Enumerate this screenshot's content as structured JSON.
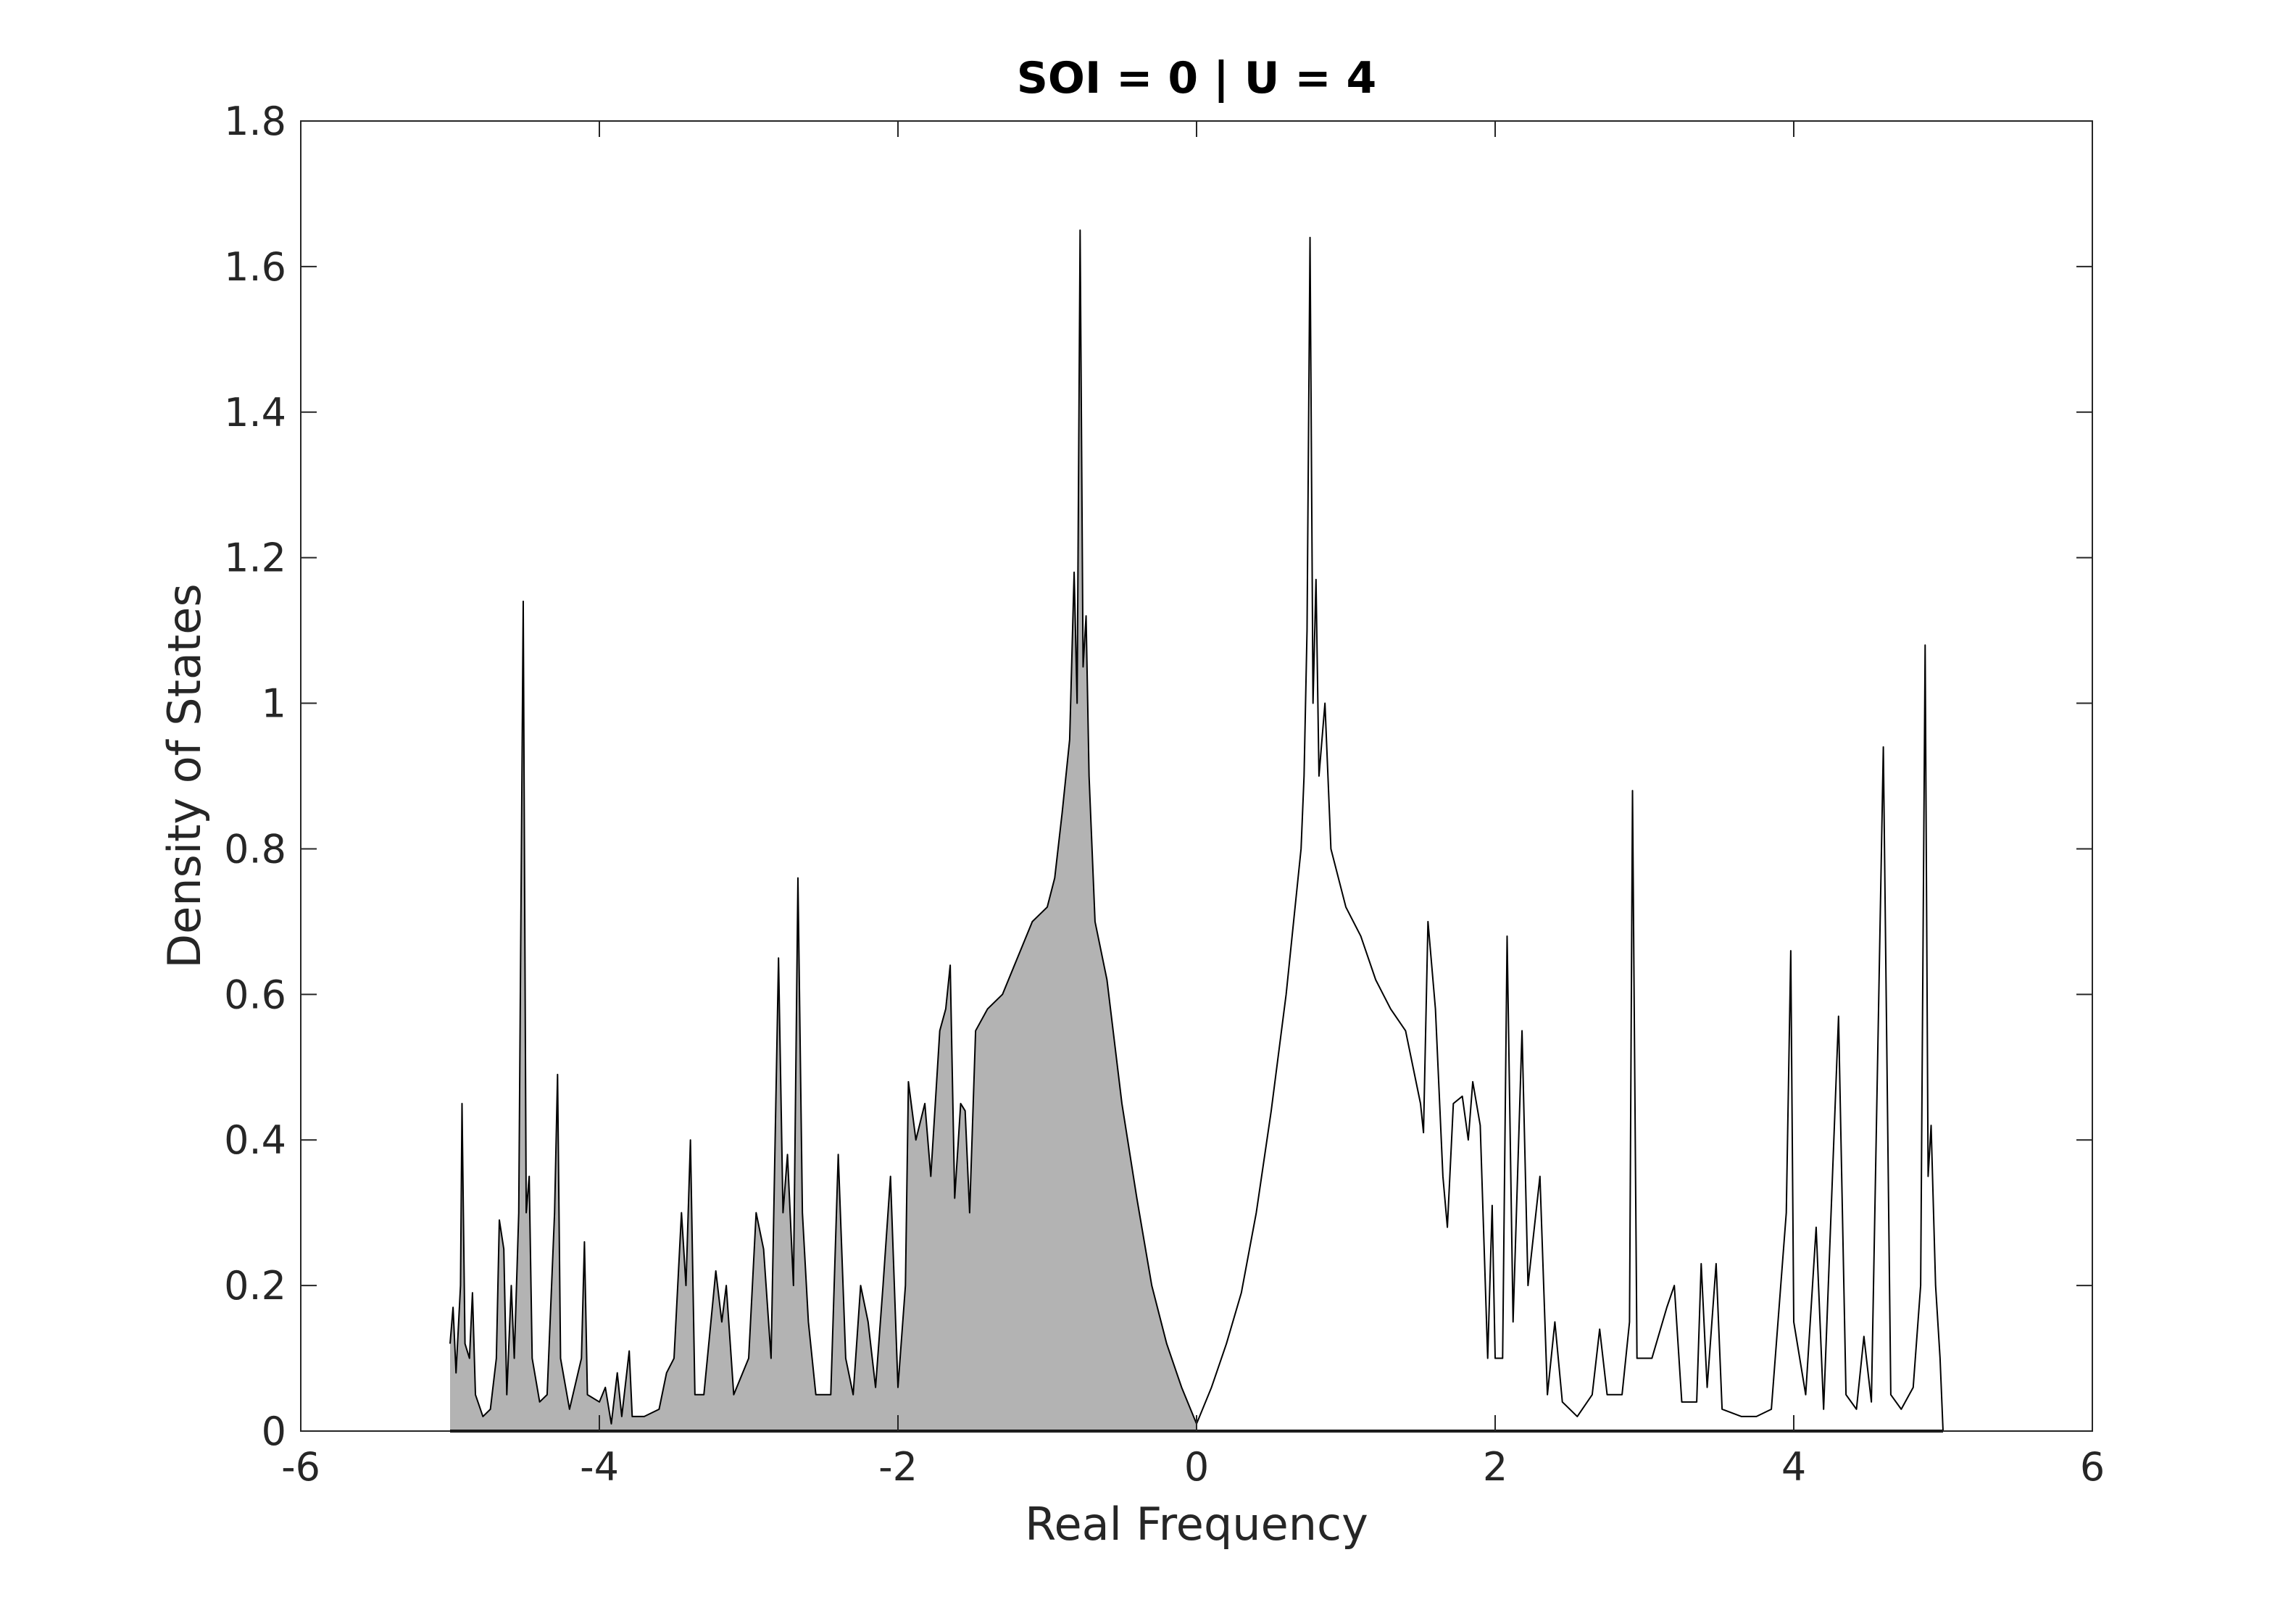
{
  "chart_data": {
    "type": "line",
    "title": "SOI = 0 | U = 4",
    "xlabel": "Real Frequency",
    "ylabel": "Density of States",
    "xlim": [
      -6,
      6
    ],
    "ylim": [
      0,
      1.8
    ],
    "xticks": [
      -6,
      -4,
      -2,
      0,
      2,
      4,
      6
    ],
    "yticks": [
      0,
      0.2,
      0.4,
      0.6,
      0.8,
      1,
      1.2,
      1.4,
      1.6,
      1.8
    ],
    "grid": false,
    "color": "#000000",
    "fill_color": "#b3b3b3",
    "fill_xlim": [
      -5,
      0
    ],
    "x": [
      -5.0,
      -4.98,
      -4.96,
      -4.93,
      -4.92,
      -4.9,
      -4.87,
      -4.85,
      -4.83,
      -4.78,
      -4.73,
      -4.69,
      -4.67,
      -4.64,
      -4.62,
      -4.59,
      -4.57,
      -4.54,
      -4.51,
      -4.49,
      -4.47,
      -4.45,
      -4.4,
      -4.35,
      -4.3,
      -4.28,
      -4.26,
      -4.2,
      -4.12,
      -4.1,
      -4.08,
      -4.0,
      -3.96,
      -3.92,
      -3.88,
      -3.85,
      -3.8,
      -3.78,
      -3.7,
      -3.6,
      -3.55,
      -3.5,
      -3.45,
      -3.42,
      -3.39,
      -3.36,
      -3.3,
      -3.22,
      -3.18,
      -3.15,
      -3.1,
      -3.0,
      -2.95,
      -2.9,
      -2.85,
      -2.8,
      -2.77,
      -2.74,
      -2.7,
      -2.67,
      -2.64,
      -2.6,
      -2.55,
      -2.45,
      -2.4,
      -2.35,
      -2.3,
      -2.25,
      -2.2,
      -2.15,
      -2.1,
      -2.05,
      -2.0,
      -1.95,
      -1.93,
      -1.88,
      -1.82,
      -1.78,
      -1.72,
      -1.68,
      -1.65,
      -1.62,
      -1.58,
      -1.55,
      -1.52,
      -1.48,
      -1.4,
      -1.3,
      -1.2,
      -1.1,
      -1.0,
      -0.95,
      -0.9,
      -0.85,
      -0.82,
      -0.8,
      -0.78,
      -0.76,
      -0.74,
      -0.72,
      -0.68,
      -0.6,
      -0.5,
      -0.4,
      -0.3,
      -0.2,
      -0.1,
      0,
      0.1,
      0.2,
      0.3,
      0.4,
      0.5,
      0.6,
      0.65,
      0.7,
      0.72,
      0.74,
      0.76,
      0.78,
      0.8,
      0.82,
      0.86,
      0.9,
      1.0,
      1.1,
      1.2,
      1.3,
      1.4,
      1.5,
      1.52,
      1.55,
      1.6,
      1.65,
      1.68,
      1.72,
      1.78,
      1.82,
      1.85,
      1.9,
      1.95,
      1.98,
      2.0,
      2.05,
      2.08,
      2.12,
      2.18,
      2.22,
      2.3,
      2.35,
      2.4,
      2.45,
      2.55,
      2.65,
      2.7,
      2.75,
      2.85,
      2.9,
      2.92,
      2.95,
      3.05,
      3.15,
      3.2,
      3.25,
      3.35,
      3.38,
      3.42,
      3.48,
      3.52,
      3.65,
      3.75,
      3.85,
      3.95,
      3.98,
      4.0,
      4.08,
      4.15,
      4.2,
      4.3,
      4.35,
      4.42,
      4.47,
      4.52,
      4.6,
      4.65,
      4.72,
      4.8,
      4.85,
      4.88,
      4.9,
      4.92,
      4.95,
      4.98,
      5.0
    ],
    "values": [
      0.12,
      0.17,
      0.08,
      0.2,
      0.45,
      0.12,
      0.1,
      0.19,
      0.05,
      0.02,
      0.03,
      0.1,
      0.29,
      0.25,
      0.05,
      0.2,
      0.1,
      0.3,
      1.14,
      0.3,
      0.35,
      0.1,
      0.04,
      0.05,
      0.3,
      0.49,
      0.1,
      0.03,
      0.1,
      0.26,
      0.05,
      0.04,
      0.06,
      0.01,
      0.08,
      0.02,
      0.11,
      0.02,
      0.02,
      0.03,
      0.08,
      0.1,
      0.3,
      0.2,
      0.4,
      0.05,
      0.05,
      0.22,
      0.15,
      0.2,
      0.05,
      0.1,
      0.3,
      0.25,
      0.1,
      0.65,
      0.3,
      0.38,
      0.2,
      0.76,
      0.3,
      0.15,
      0.05,
      0.05,
      0.38,
      0.1,
      0.05,
      0.2,
      0.15,
      0.06,
      0.2,
      0.35,
      0.06,
      0.2,
      0.48,
      0.4,
      0.45,
      0.35,
      0.55,
      0.58,
      0.64,
      0.32,
      0.45,
      0.44,
      0.3,
      0.55,
      0.58,
      0.6,
      0.65,
      0.7,
      0.72,
      0.76,
      0.85,
      0.95,
      1.18,
      1.0,
      1.65,
      1.05,
      1.12,
      0.9,
      0.7,
      0.62,
      0.45,
      0.32,
      0.2,
      0.12,
      0.06,
      0.01,
      0.06,
      0.12,
      0.19,
      0.3,
      0.44,
      0.6,
      0.7,
      0.8,
      0.9,
      1.1,
      1.64,
      1.0,
      1.17,
      0.9,
      1.0,
      0.8,
      0.72,
      0.68,
      0.62,
      0.58,
      0.55,
      0.45,
      0.41,
      0.7,
      0.58,
      0.35,
      0.28,
      0.45,
      0.46,
      0.4,
      0.48,
      0.42,
      0.1,
      0.31,
      0.1,
      0.1,
      0.68,
      0.15,
      0.55,
      0.2,
      0.35,
      0.05,
      0.15,
      0.04,
      0.02,
      0.05,
      0.14,
      0.05,
      0.05,
      0.15,
      0.88,
      0.1,
      0.1,
      0.17,
      0.2,
      0.04,
      0.04,
      0.23,
      0.06,
      0.23,
      0.03,
      0.02,
      0.02,
      0.03,
      0.3,
      0.66,
      0.15,
      0.05,
      0.28,
      0.03,
      0.57,
      0.05,
      0.03,
      0.13,
      0.04,
      0.94,
      0.05,
      0.03,
      0.06,
      0.2,
      1.08,
      0.35,
      0.42,
      0.2,
      0.1,
      0.0
    ]
  }
}
